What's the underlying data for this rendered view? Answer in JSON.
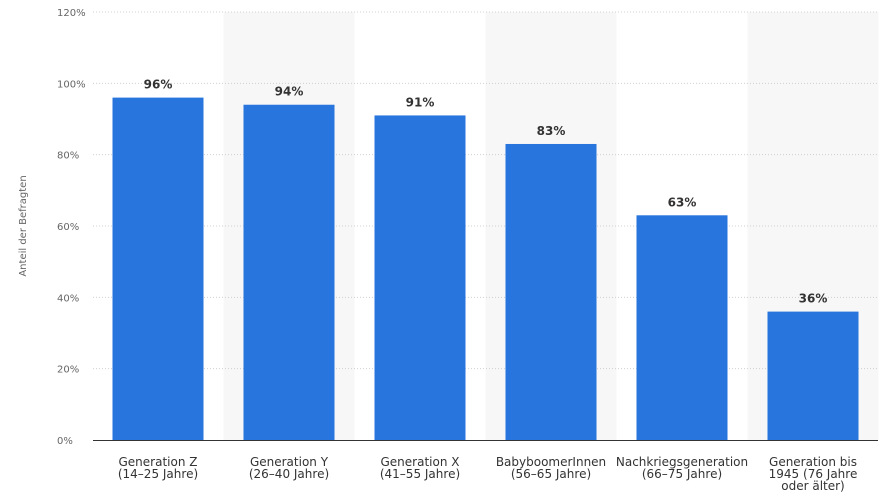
{
  "chart_data": {
    "type": "bar",
    "title": "",
    "xlabel": "",
    "ylabel": "Anteil der Befragten",
    "ylim": [
      0,
      120
    ],
    "yticks": [
      "0%",
      "20%",
      "40%",
      "60%",
      "80%",
      "100%",
      "120%"
    ],
    "grid": true,
    "categories": [
      [
        "Generation Z",
        "(14–25 Jahre)"
      ],
      [
        "Generation Y",
        "(26–40 Jahre)"
      ],
      [
        "Generation X",
        "(41–55 Jahre)"
      ],
      [
        "BabyboomerInnen",
        "(56–65 Jahre)"
      ],
      [
        "Nachkriegsgeneration",
        "(66–75 Jahre)"
      ],
      [
        "Generation bis",
        "1945 (76 Jahre",
        "oder älter)"
      ]
    ],
    "values": [
      96,
      94,
      91,
      83,
      63,
      36
    ],
    "value_labels": [
      "96%",
      "94%",
      "91%",
      "83%",
      "63%",
      "36%"
    ],
    "colors": {
      "bar": "#2775dd",
      "band": "#f7f7f7",
      "grid": "#d0d0d0",
      "axis": "#333333"
    }
  }
}
